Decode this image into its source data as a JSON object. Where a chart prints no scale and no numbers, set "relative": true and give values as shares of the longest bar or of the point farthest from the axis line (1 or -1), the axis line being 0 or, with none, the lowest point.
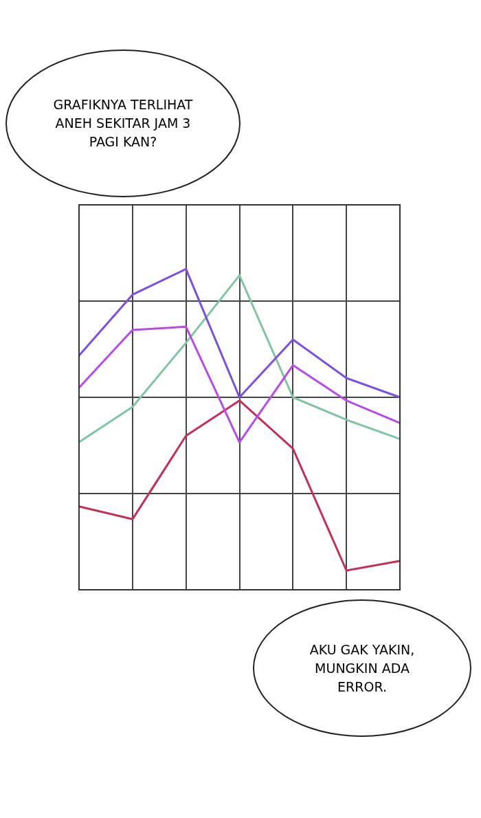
{
  "chart_data": {
    "type": "line",
    "relative": true,
    "categories": [
      null,
      null,
      null,
      null,
      null,
      null,
      null
    ],
    "tick_labels": false,
    "grid": true,
    "legend": false,
    "marker": "none",
    "line_style": "solid",
    "annotations": [
      "GRAFIKNYA TERLIHAT ANEH SEKITAR JAM 3 PAGI KAN?",
      "AKU GAK YAKIN, MUNGKIN ADA ERROR."
    ],
    "series": [
      {
        "color": "#7b4fe0",
        "values": [
          0.73,
          0.92,
          1,
          0.6,
          0.78,
          0.66,
          0.6
        ]
      },
      {
        "color": "#b84be8",
        "values": [
          0.63,
          0.81,
          0.82,
          0.46,
          0.7,
          0.59,
          0.52
        ]
      },
      {
        "color": "#7fc4a4",
        "values": [
          0.46,
          0.57,
          0.77,
          0.98,
          0.6,
          0.53,
          0.47
        ]
      },
      {
        "color": "#c2305a",
        "values": [
          0.26,
          0.22,
          0.48,
          0.59,
          0.44,
          0.06,
          0.09
        ]
      }
    ]
  }
}
